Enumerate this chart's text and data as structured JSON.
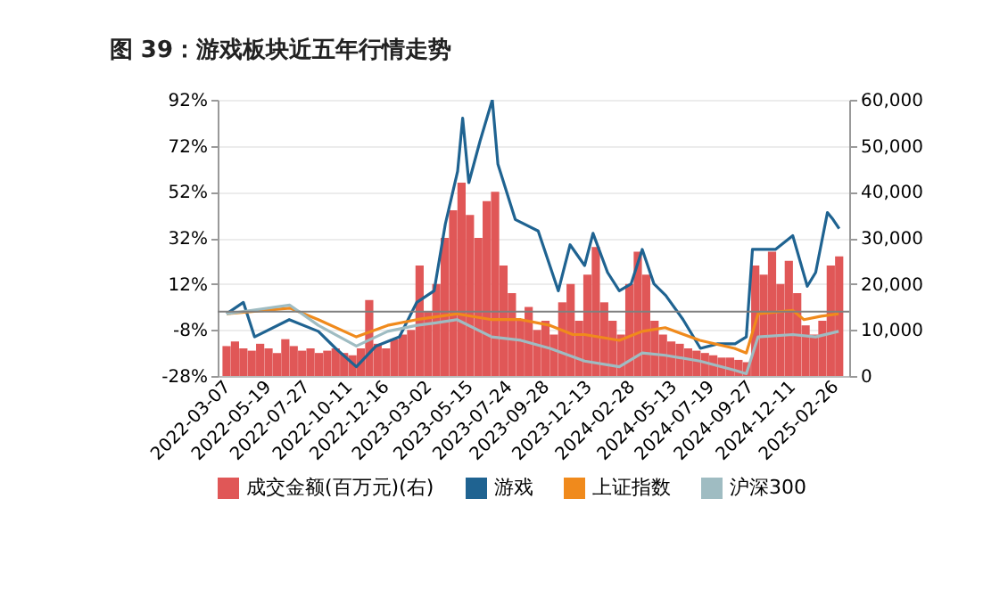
{
  "chart_data": {
    "type": "line",
    "title": "图 39：游戏板块近五年行情走势",
    "xlim": [
      "2022-03-07",
      "2025-03-08"
    ],
    "xticks": [
      "2022-03-07",
      "2022-05-19",
      "2022-07-27",
      "2022-10-11",
      "2022-12-16",
      "2023-03-02",
      "2023-05-15",
      "2023-07-24",
      "2023-09-28",
      "2023-12-13",
      "2024-02-28",
      "2024-05-13",
      "2024-07-19",
      "2024-09-27",
      "2024-12-11",
      "2025-02-26"
    ],
    "ylim": [
      -28,
      92
    ],
    "yticks": [
      {
        "value": -28,
        "label": "-28%"
      },
      {
        "value": -8,
        "label": "-8%"
      },
      {
        "value": 12,
        "label": "12%"
      },
      {
        "value": 32,
        "label": "32%"
      },
      {
        "value": 52,
        "label": "52%"
      },
      {
        "value": 72,
        "label": "72%"
      },
      {
        "value": 92,
        "label": "92%"
      }
    ],
    "y2lim": [
      0,
      60000
    ],
    "y2ticks": [
      {
        "value": 0,
        "label": "0"
      },
      {
        "value": 10000,
        "label": "10,000"
      },
      {
        "value": 20000,
        "label": "20,000"
      },
      {
        "value": 30000,
        "label": "30,000"
      },
      {
        "value": 40000,
        "label": "40,000"
      },
      {
        "value": 50000,
        "label": "50,000"
      },
      {
        "value": 60000,
        "label": "60,000"
      }
    ],
    "grid": "y",
    "legend": "bottom",
    "ref_lines": [
      {
        "axis": "y",
        "value": 0,
        "color": "#7f7f7f"
      }
    ],
    "series": [
      {
        "name": "成交金额(百万元)(右)",
        "type": "bar",
        "axis": "y2",
        "color": "#e05757",
        "x": [
          "2022-03-07",
          "2022-03-22",
          "2022-04-06",
          "2022-04-21",
          "2022-05-06",
          "2022-05-21",
          "2022-06-05",
          "2022-06-20",
          "2022-07-05",
          "2022-07-20",
          "2022-08-04",
          "2022-08-19",
          "2022-09-03",
          "2022-09-18",
          "2022-10-03",
          "2022-10-18",
          "2022-11-02",
          "2022-11-17",
          "2022-12-02",
          "2022-12-17",
          "2023-01-01",
          "2023-01-16",
          "2023-01-31",
          "2023-02-15",
          "2023-03-02",
          "2023-03-17",
          "2023-04-01",
          "2023-04-16",
          "2023-05-01",
          "2023-05-16",
          "2023-05-31",
          "2023-06-15",
          "2023-06-30",
          "2023-07-15",
          "2023-07-30",
          "2023-08-14",
          "2023-08-29",
          "2023-09-13",
          "2023-09-28",
          "2023-10-13",
          "2023-10-28",
          "2023-11-12",
          "2023-11-27",
          "2023-12-12",
          "2023-12-27",
          "2024-01-11",
          "2024-01-26",
          "2024-02-10",
          "2024-02-25",
          "2024-03-11",
          "2024-03-26",
          "2024-04-10",
          "2024-04-25",
          "2024-05-10",
          "2024-05-25",
          "2024-06-09",
          "2024-06-24",
          "2024-07-09",
          "2024-07-24",
          "2024-08-08",
          "2024-08-23",
          "2024-09-07",
          "2024-09-22",
          "2024-10-07",
          "2024-10-22",
          "2024-11-06",
          "2024-11-21",
          "2024-12-06",
          "2024-12-21",
          "2025-01-05",
          "2025-01-20",
          "2025-02-04",
          "2025-02-19",
          "2025-03-06"
        ],
        "values": [
          6500,
          7500,
          6000,
          5500,
          7000,
          6000,
          5000,
          8000,
          6500,
          5500,
          6000,
          5000,
          5500,
          6000,
          5000,
          4500,
          6000,
          16500,
          7000,
          6000,
          8000,
          9000,
          10000,
          24000,
          14000,
          20000,
          30000,
          36000,
          42000,
          35000,
          30000,
          38000,
          40000,
          24000,
          18000,
          12000,
          15000,
          10000,
          12000,
          9000,
          16000,
          20000,
          12000,
          22000,
          28000,
          16000,
          12000,
          9000,
          20000,
          27000,
          22000,
          12000,
          9000,
          7500,
          7000,
          6000,
          5500,
          5000,
          4500,
          4000,
          4000,
          3500,
          3000,
          24000,
          22000,
          27000,
          20000,
          25000,
          18000,
          11000,
          9000,
          12000,
          24000,
          26000
        ]
      },
      {
        "name": "游戏",
        "color": "#1f6391",
        "x": [
          "2022-03-07",
          "2022-04-06",
          "2022-04-26",
          "2022-06-27",
          "2022-08-18",
          "2022-09-18",
          "2022-10-25",
          "2022-11-29",
          "2023-01-10",
          "2023-02-10",
          "2023-03-13",
          "2023-04-02",
          "2023-04-24",
          "2023-05-03",
          "2023-05-14",
          "2023-06-03",
          "2023-06-25",
          "2023-07-05",
          "2023-08-05",
          "2023-09-15",
          "2023-10-21",
          "2023-11-11",
          "2023-12-07",
          "2023-12-22",
          "2024-01-17",
          "2024-02-07",
          "2024-02-28",
          "2024-03-19",
          "2024-04-09",
          "2024-04-30",
          "2024-05-31",
          "2024-07-01",
          "2024-08-01",
          "2024-09-01",
          "2024-09-21",
          "2024-10-02",
          "2024-11-12",
          "2024-12-13",
          "2025-01-08",
          "2025-01-23",
          "2025-02-13",
          "2025-02-23",
          "2025-03-06"
        ],
        "values": [
          -1,
          4,
          -11,
          -3.5,
          -8.6,
          -16,
          -24,
          -15,
          -11,
          4,
          9,
          38,
          61,
          84,
          56,
          74,
          92,
          64,
          40,
          35,
          9,
          29,
          20,
          34,
          17,
          9,
          12,
          27,
          12,
          7,
          -3.5,
          -16,
          -14,
          -14,
          -11,
          27,
          27,
          33,
          11,
          17,
          43,
          40,
          36
        ]
      },
      {
        "name": "上证指数",
        "color": "#f08a1c",
        "x": [
          "2022-03-07",
          "2022-06-28",
          "2022-08-18",
          "2022-10-25",
          "2022-12-20",
          "2023-02-10",
          "2023-04-23",
          "2023-06-24",
          "2023-08-15",
          "2023-10-06",
          "2023-11-16",
          "2023-12-07",
          "2024-02-07",
          "2024-03-19",
          "2024-04-29",
          "2024-06-30",
          "2024-08-31",
          "2024-09-21",
          "2024-10-12",
          "2024-12-13",
          "2025-01-02",
          "2025-02-02",
          "2025-03-05"
        ],
        "values": [
          -1,
          1.5,
          -3.5,
          -11,
          -6,
          -3.5,
          -1,
          -3.5,
          -3.5,
          -6,
          -10,
          -10,
          -12.5,
          -8.6,
          -7,
          -12.5,
          -16,
          -18,
          -1,
          0.5,
          -3.5,
          -2,
          -1
        ]
      },
      {
        "name": "沪深300",
        "color": "#9fbcc2",
        "x": [
          "2022-03-07",
          "2022-06-28",
          "2022-08-18",
          "2022-10-25",
          "2022-12-20",
          "2023-02-10",
          "2023-03-13",
          "2023-04-23",
          "2023-06-24",
          "2023-08-15",
          "2023-10-06",
          "2023-12-07",
          "2024-02-07",
          "2024-03-19",
          "2024-04-29",
          "2024-06-30",
          "2024-08-31",
          "2024-09-21",
          "2024-10-12",
          "2024-12-13",
          "2025-01-23",
          "2025-03-05"
        ],
        "values": [
          -1,
          2.8,
          -6,
          -15,
          -8.6,
          -6,
          -5,
          -3.5,
          -11,
          -12.5,
          -16,
          -21.5,
          -24,
          -18,
          -19,
          -21.5,
          -25.5,
          -27,
          -11,
          -10,
          -11,
          -8.6
        ]
      }
    ]
  }
}
